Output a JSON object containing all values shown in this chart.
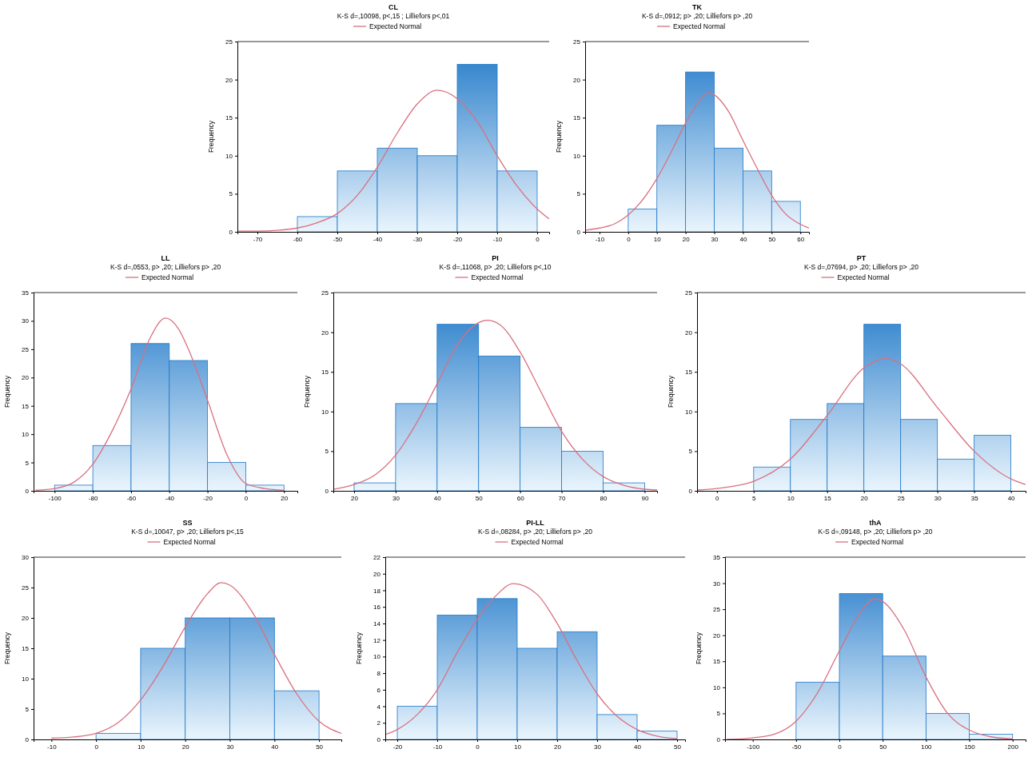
{
  "chart_data": [
    {
      "type": "histogram",
      "title": "CL",
      "subtitle": "K-S d=,10098, p<,15 ; Lilliefors p<,01",
      "ylabel": "Frequency",
      "legend": "top",
      "color": "#1f78c8",
      "bins": [
        -60,
        -50,
        -40,
        -30,
        -20,
        -10,
        0
      ],
      "values": [
        2,
        8,
        11,
        10,
        22,
        8
      ],
      "xlim": [
        -75,
        3
      ],
      "xticks": [
        -70,
        -60,
        -50,
        -40,
        -30,
        -20,
        -10,
        0
      ],
      "ylim": [
        0,
        25
      ],
      "yticks": [
        0,
        5,
        10,
        15,
        20,
        25
      ],
      "series": [
        {
          "type": "line",
          "name": "Expected Normal",
          "color": "#d9707f",
          "x": [
            -75,
            -70,
            -65,
            -60,
            -55,
            -50,
            -45,
            -40,
            -35,
            -30,
            -25,
            -20,
            -15,
            -10,
            -5,
            0,
            3
          ],
          "values": [
            0.1,
            0.1,
            0.2,
            0.5,
            1.2,
            2.4,
            4.8,
            8.5,
            13,
            16.8,
            18.6,
            17.5,
            14.5,
            10,
            6,
            3,
            1.7
          ]
        }
      ]
    },
    {
      "type": "histogram",
      "title": "TK",
      "subtitle": "K-S d=,0912; p> ,20; Lilliefors p> ,20",
      "ylabel": "Frequency",
      "legend": "top",
      "color": "#1f78c8",
      "bins": [
        0,
        10,
        20,
        30,
        40,
        50,
        60
      ],
      "values": [
        3,
        14,
        21,
        11,
        8,
        4
      ],
      "xlim": [
        -15,
        63
      ],
      "xticks": [
        -10,
        0,
        10,
        20,
        30,
        40,
        50,
        60
      ],
      "ylim": [
        0,
        25
      ],
      "yticks": [
        0,
        5,
        10,
        15,
        20,
        25
      ],
      "series": [
        {
          "type": "line",
          "name": "Expected Normal",
          "color": "#d9707f",
          "x": [
            -15,
            -10,
            -5,
            0,
            5,
            10,
            15,
            20,
            25,
            28,
            30,
            35,
            40,
            45,
            50,
            55,
            60,
            63
          ],
          "values": [
            0.2,
            0.5,
            1,
            2.2,
            4.2,
            7,
            10.5,
            14.3,
            17.3,
            18.3,
            18,
            15.8,
            12,
            8.3,
            4.8,
            2.3,
            1,
            0.5
          ]
        }
      ]
    },
    {
      "type": "histogram",
      "title": "LL",
      "subtitle": "K-S d=,0553, p> ,20; Lilliefors p> ,20",
      "ylabel": "Frequency",
      "legend": "top",
      "color": "#1f78c8",
      "bins": [
        -100,
        -80,
        -60,
        -40,
        -20,
        0,
        20
      ],
      "values": [
        1,
        8,
        26,
        23,
        5,
        1
      ],
      "xlim": [
        -111,
        27
      ],
      "xticks": [
        -100,
        -80,
        -60,
        -40,
        -20,
        0,
        20
      ],
      "ylim": [
        0,
        35
      ],
      "yticks": [
        0,
        5,
        10,
        15,
        20,
        25,
        30,
        35
      ],
      "series": [
        {
          "type": "line",
          "name": "Expected Normal",
          "color": "#d9707f",
          "x": [
            -110,
            -100,
            -90,
            -80,
            -70,
            -60,
            -50,
            -42,
            -35,
            -30,
            -20,
            -10,
            0,
            10,
            20
          ],
          "values": [
            0.1,
            0.4,
            1.5,
            4.7,
            10.5,
            18,
            27,
            30.5,
            28.5,
            25,
            16,
            6.5,
            1.3,
            0.4,
            0.1
          ]
        }
      ]
    },
    {
      "type": "histogram",
      "title": "PI",
      "subtitle": "K-S d=,11068, p> ,20; Lilliefors p<,10",
      "ylabel": "Frequency",
      "legend": "top",
      "color": "#1f78c8",
      "bins": [
        20,
        30,
        40,
        50,
        60,
        70,
        80,
        90
      ],
      "values": [
        1,
        11,
        21,
        17,
        8,
        5,
        1
      ],
      "xlim": [
        15,
        93
      ],
      "xticks": [
        20,
        30,
        40,
        50,
        60,
        70,
        80,
        90
      ],
      "ylim": [
        0,
        25
      ],
      "yticks": [
        0,
        5,
        10,
        15,
        20,
        25
      ],
      "series": [
        {
          "type": "line",
          "name": "Expected Normal",
          "color": "#d9707f",
          "x": [
            15,
            20,
            25,
            30,
            35,
            40,
            45,
            50,
            52,
            55,
            60,
            65,
            70,
            75,
            80,
            85,
            90,
            93
          ],
          "values": [
            0.2,
            0.8,
            2,
            4.5,
            8.5,
            13.5,
            18.5,
            21.2,
            21.5,
            21,
            17.5,
            12.5,
            7.5,
            4,
            1.8,
            0.7,
            0.2,
            0.1
          ]
        }
      ]
    },
    {
      "type": "histogram",
      "title": "PT",
      "subtitle": "K-S d=,07694, p> ,20; Lilliefors p> ,20",
      "ylabel": "Frequency",
      "legend": "top",
      "color": "#1f78c8",
      "bins": [
        5,
        10,
        15,
        20,
        25,
        30,
        35,
        40
      ],
      "values": [
        3,
        9,
        11,
        21,
        9,
        4,
        7
      ],
      "xlim": [
        -2.7,
        42
      ],
      "xticks": [
        0,
        5,
        10,
        15,
        20,
        25,
        30,
        35,
        40
      ],
      "ylim": [
        0,
        25
      ],
      "yticks": [
        0,
        5,
        10,
        15,
        20,
        25
      ],
      "series": [
        {
          "type": "line",
          "name": "Expected Normal",
          "color": "#d9707f",
          "x": [
            -2.7,
            0,
            5,
            10,
            15,
            20,
            23,
            25,
            30,
            35,
            40,
            42
          ],
          "values": [
            0.1,
            0.3,
            1.2,
            4,
            9.5,
            15.5,
            16.7,
            16,
            10.5,
            5,
            1.5,
            0.8
          ]
        }
      ]
    },
    {
      "type": "histogram",
      "title": "SS",
      "subtitle": "K-S d=,10047, p> ,20; Lilliefors p<,15",
      "ylabel": "Frequency",
      "legend": "top",
      "color": "#1f78c8",
      "bins": [
        0,
        10,
        20,
        30,
        40,
        50
      ],
      "values": [
        1,
        15,
        20,
        20,
        8
      ],
      "xlim": [
        -14,
        55
      ],
      "xticks": [
        -10,
        0,
        10,
        20,
        30,
        40,
        50
      ],
      "ylim": [
        0,
        30
      ],
      "yticks": [
        0,
        5,
        10,
        15,
        20,
        25,
        30
      ],
      "series": [
        {
          "type": "line",
          "name": "Expected Normal",
          "color": "#d9707f",
          "x": [
            -10,
            -5,
            0,
            5,
            10,
            15,
            20,
            25,
            28,
            30,
            35,
            40,
            45,
            50,
            55
          ],
          "values": [
            0.2,
            0.4,
            1,
            2.8,
            6.5,
            12,
            18.5,
            24,
            25.8,
            25.4,
            21,
            14,
            7.5,
            3,
            1
          ]
        }
      ]
    },
    {
      "type": "histogram",
      "title": "PI-LL",
      "subtitle": "K-S d=,08284, p> ,20; Lilliefors p> ,20",
      "ylabel": "Frequency",
      "legend": "top",
      "color": "#1f78c8",
      "bins": [
        -20,
        -10,
        0,
        10,
        20,
        30,
        40,
        50
      ],
      "values": [
        4,
        15,
        17,
        11,
        13,
        3,
        1
      ],
      "xlim": [
        -23,
        52
      ],
      "xticks": [
        -20,
        -10,
        0,
        10,
        20,
        30,
        40,
        50
      ],
      "ylim": [
        0,
        22
      ],
      "yticks": [
        0,
        2,
        4,
        6,
        8,
        10,
        12,
        14,
        16,
        18,
        20,
        22
      ],
      "series": [
        {
          "type": "line",
          "name": "Expected Normal",
          "color": "#d9707f",
          "x": [
            -23,
            -20,
            -15,
            -10,
            -5,
            0,
            5,
            9,
            15,
            20,
            25,
            30,
            35,
            40,
            45,
            50
          ],
          "values": [
            0.6,
            1.2,
            3,
            6,
            10.5,
            14.5,
            17.5,
            18.8,
            17.5,
            14,
            9.5,
            5.5,
            2.8,
            1.2,
            0.4,
            0.1
          ]
        }
      ]
    },
    {
      "type": "histogram",
      "title": "thA",
      "subtitle": "K-S d=,09148, p> ,20; Lilliefors p> ,20",
      "ylabel": "Frequency",
      "legend": "top",
      "color": "#1f78c8",
      "bins": [
        -50,
        0,
        50,
        100,
        150,
        200
      ],
      "values": [
        11,
        28,
        16,
        5,
        1
      ],
      "xlim": [
        -132,
        215
      ],
      "xticks": [
        -100,
        -50,
        0,
        50,
        100,
        150,
        200
      ],
      "ylim": [
        0,
        35
      ],
      "yticks": [
        0,
        5,
        10,
        15,
        20,
        25,
        30,
        35
      ],
      "series": [
        {
          "type": "line",
          "name": "Expected Normal",
          "color": "#d9707f",
          "x": [
            -130,
            -100,
            -75,
            -50,
            -25,
            0,
            25,
            40,
            50,
            75,
            100,
            125,
            150,
            175,
            200
          ],
          "values": [
            0,
            0.3,
            1,
            3.5,
            9,
            17,
            24.5,
            27,
            26.5,
            21,
            12,
            5,
            1.8,
            0.5,
            0.1
          ]
        }
      ]
    }
  ]
}
